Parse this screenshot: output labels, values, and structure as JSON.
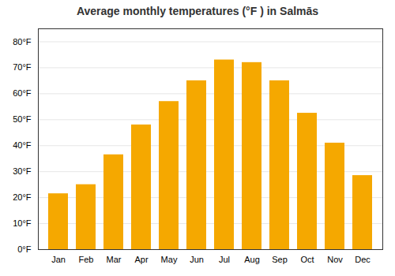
{
  "chart_data": {
    "type": "bar",
    "title": "Average monthly temperatures (°F ) in Salmās",
    "categories": [
      "Jan",
      "Feb",
      "Mar",
      "Apr",
      "May",
      "Jun",
      "Jul",
      "Aug",
      "Sep",
      "Oct",
      "Nov",
      "Dec"
    ],
    "values": [
      21.5,
      25.0,
      36.5,
      48.0,
      57.0,
      65.0,
      73.0,
      72.0,
      65.0,
      52.5,
      41.0,
      28.5
    ],
    "color": "#F5A800",
    "ylim": [
      0,
      85
    ],
    "yticks": [
      {
        "value": 0,
        "label": "0°F"
      },
      {
        "value": 10,
        "label": "10°F"
      },
      {
        "value": 20,
        "label": "20°F"
      },
      {
        "value": 30,
        "label": "30°F"
      },
      {
        "value": 40,
        "label": "40°F"
      },
      {
        "value": 50,
        "label": "50°F"
      },
      {
        "value": 60,
        "label": "60°F"
      },
      {
        "value": 70,
        "label": "70°F"
      },
      {
        "value": 80,
        "label": "80°F"
      }
    ],
    "grid": true
  }
}
